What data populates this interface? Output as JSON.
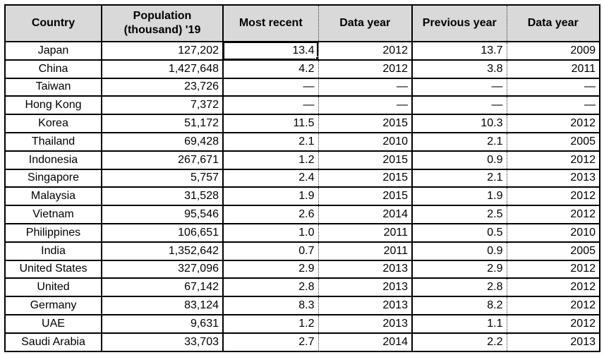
{
  "table": {
    "columns": [
      {
        "key": "country",
        "label": "Country",
        "align": "center"
      },
      {
        "key": "population",
        "label": "Population (thousand) '19",
        "align": "right"
      },
      {
        "key": "most-recent",
        "label": "Most recent",
        "align": "right"
      },
      {
        "key": "data-year",
        "label": "Data year",
        "align": "right"
      },
      {
        "key": "previous-year",
        "label": "Previous year",
        "align": "right"
      },
      {
        "key": "data-year-2",
        "label": "Data year",
        "align": "right"
      }
    ],
    "rows": [
      [
        "Japan",
        "127,202",
        "13.4",
        "2012",
        "13.7",
        "2009"
      ],
      [
        "China",
        "1,427,648",
        "4.2",
        "2012",
        "3.8",
        "2011"
      ],
      [
        "Taiwan",
        "23,726",
        "—",
        "—",
        "—",
        "—"
      ],
      [
        "Hong Kong",
        "7,372",
        "—",
        "—",
        "—",
        "—"
      ],
      [
        "Korea",
        "51,172",
        "11.5",
        "2015",
        "10.3",
        "2012"
      ],
      [
        "Thailand",
        "69,428",
        "2.1",
        "2010",
        "2.1",
        "2005"
      ],
      [
        "Indonesia",
        "267,671",
        "1.2",
        "2015",
        "0.9",
        "2012"
      ],
      [
        "Singapore",
        "5,757",
        "2.4",
        "2015",
        "2.1",
        "2013"
      ],
      [
        "Malaysia",
        "31,528",
        "1.9",
        "2015",
        "1.9",
        "2012"
      ],
      [
        "Vietnam",
        "95,546",
        "2.6",
        "2014",
        "2.5",
        "2012"
      ],
      [
        "Philippines",
        "106,651",
        "1.0",
        "2011",
        "0.5",
        "2010"
      ],
      [
        "India",
        "1,352,642",
        "0.7",
        "2011",
        "0.9",
        "2005"
      ],
      [
        "United States",
        "327,096",
        "2.9",
        "2013",
        "2.9",
        "2012"
      ],
      [
        "United",
        "67,142",
        "2.8",
        "2013",
        "2.8",
        "2012"
      ],
      [
        "Germany",
        "83,124",
        "8.3",
        "2013",
        "8.2",
        "2012"
      ],
      [
        "UAE",
        "9,631",
        "1.2",
        "2013",
        "1.1",
        "2012"
      ],
      [
        "Saudi Arabia",
        "33,703",
        "2.7",
        "2014",
        "2.2",
        "2013"
      ]
    ],
    "selected_cell": {
      "row": 0,
      "col": 2
    },
    "empty_marker": "—",
    "colors": {
      "header_bg": "#d9d9d9",
      "grid": "#000000",
      "dotted_grid": "#333333",
      "text": "#000000",
      "background": "#ffffff"
    }
  }
}
